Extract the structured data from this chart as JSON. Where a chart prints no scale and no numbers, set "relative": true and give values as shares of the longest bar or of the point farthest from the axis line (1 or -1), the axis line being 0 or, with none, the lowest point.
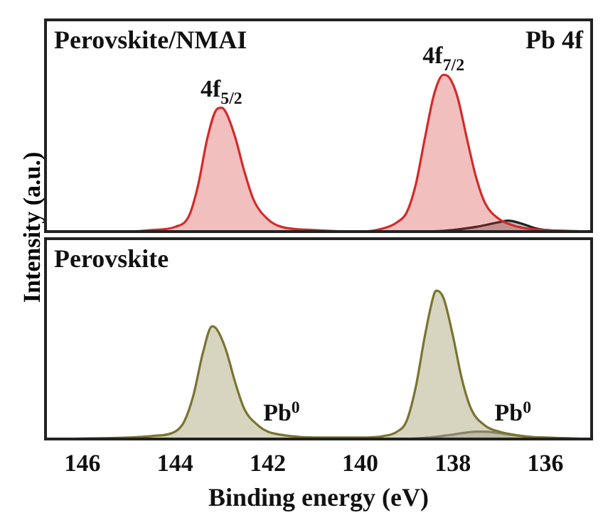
{
  "chart_data": [
    {
      "type": "area",
      "relative": true,
      "ylabel": "Intensity (a.u.)",
      "xlim": [
        146.8,
        135
      ],
      "xticks": [
        146,
        144,
        142,
        140,
        138,
        136
      ],
      "tick_labels": false,
      "grid": false,
      "legend": false,
      "marker": "none",
      "annotations": [
        "Perovskite/NMAI",
        "Pb 4f",
        {
          "text": "4f$_{5/2}$",
          "x": 143.0,
          "y": 0.79
        },
        {
          "text": "4f$_{7/2}$",
          "x": 138.2,
          "y": 1.0
        }
      ],
      "series": [
        {
          "color": "#d42a2a",
          "x": [
            146.8,
            145,
            144.5,
            144,
            143.7,
            143.5,
            143.3,
            143.1,
            143.0,
            142.9,
            142.7,
            142.5,
            142.3,
            142.0,
            141.7,
            141,
            140,
            139.5,
            139.2,
            139,
            138.8,
            138.6,
            138.4,
            138.2,
            138.1,
            137.9,
            137.7,
            137.5,
            137.3,
            137.0,
            136.7,
            136.4,
            136,
            135
          ],
          "values": [
            0,
            0,
            0.01,
            0.03,
            0.1,
            0.3,
            0.6,
            0.78,
            0.79,
            0.76,
            0.6,
            0.38,
            0.2,
            0.08,
            0.03,
            0.01,
            0,
            0.02,
            0.06,
            0.12,
            0.3,
            0.6,
            0.88,
            1.0,
            0.99,
            0.86,
            0.6,
            0.35,
            0.18,
            0.08,
            0.04,
            0.02,
            0.01,
            0
          ]
        },
        {
          "color": "#222222",
          "x": [
            138.5,
            138,
            137.5,
            137,
            136.8,
            136.5,
            136.2,
            135.8,
            135
          ],
          "values": [
            0,
            0.01,
            0.03,
            0.06,
            0.07,
            0.05,
            0.02,
            0.005,
            0
          ]
        }
      ]
    },
    {
      "type": "area",
      "relative": true,
      "xlabel": "Binding energy (eV)",
      "xlim": [
        146.8,
        135
      ],
      "xticks": [
        146,
        144,
        142,
        140,
        138,
        136
      ],
      "tick_labels": "x",
      "grid": false,
      "legend": false,
      "marker": "none",
      "annotations": [
        "Perovskite",
        {
          "text": "Pb$^{0}$",
          "x": 141.7,
          "y": 0.05
        },
        {
          "text": "Pb$^{0}$",
          "x": 136.7,
          "y": 0.05
        }
      ],
      "series": [
        {
          "color": "#7a7330",
          "x": [
            146.8,
            145,
            144.5,
            144,
            143.8,
            143.6,
            143.4,
            143.2,
            143.1,
            142.9,
            142.7,
            142.5,
            142.2,
            142,
            141.5,
            141,
            140,
            139.5,
            139.2,
            139,
            138.8,
            138.6,
            138.4,
            138.35,
            138.2,
            138,
            137.8,
            137.6,
            137.3,
            137,
            136.5,
            136,
            135
          ],
          "values": [
            0,
            0.01,
            0.02,
            0.05,
            0.12,
            0.3,
            0.58,
            0.76,
            0.74,
            0.6,
            0.38,
            0.2,
            0.09,
            0.05,
            0.02,
            0.01,
            0.01,
            0.02,
            0.05,
            0.12,
            0.35,
            0.7,
            0.98,
            1.0,
            0.95,
            0.7,
            0.4,
            0.2,
            0.09,
            0.05,
            0.02,
            0.01,
            0
          ]
        },
        {
          "color": "#888888",
          "x": [
            139,
            138.5,
            138,
            137.5,
            137.3,
            137,
            136.5,
            136,
            135
          ],
          "values": [
            0,
            0.01,
            0.03,
            0.05,
            0.05,
            0.04,
            0.02,
            0.005,
            0
          ]
        }
      ]
    }
  ]
}
